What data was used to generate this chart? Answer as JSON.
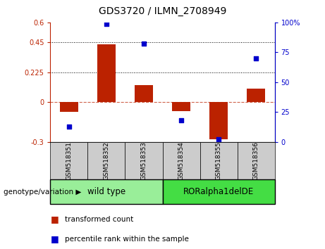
{
  "title": "GDS3720 / ILMN_2708949",
  "categories": [
    "GSM518351",
    "GSM518352",
    "GSM518353",
    "GSM518354",
    "GSM518355",
    "GSM518356"
  ],
  "red_bars": [
    -0.075,
    0.435,
    0.13,
    -0.07,
    -0.28,
    0.1
  ],
  "blue_dots": [
    13,
    99,
    82,
    18,
    2,
    70
  ],
  "ylim_left": [
    -0.3,
    0.6
  ],
  "ylim_right": [
    0,
    100
  ],
  "yticks_left": [
    -0.3,
    0,
    0.225,
    0.45,
    0.6
  ],
  "yticks_right": [
    0,
    25,
    50,
    75,
    100
  ],
  "ytick_labels_left": [
    "-0.3",
    "0",
    "0.225",
    "0.45",
    "0.6"
  ],
  "ytick_labels_right": [
    "0",
    "25",
    "50",
    "75",
    "100%"
  ],
  "hlines": [
    0.45,
    0.225
  ],
  "zero_line": 0,
  "group1_label": "wild type",
  "group2_label": "RORalpha1delDE",
  "group_label": "genotype/variation",
  "legend_red": "transformed count",
  "legend_blue": "percentile rank within the sample",
  "red_color": "#bb2200",
  "blue_color": "#0000cc",
  "group1_color": "#99ee99",
  "group2_color": "#44dd44",
  "tick_box_color": "#cccccc",
  "bar_width": 0.5,
  "dot_size": 25,
  "figsize": [
    4.61,
    3.54
  ],
  "dpi": 100
}
